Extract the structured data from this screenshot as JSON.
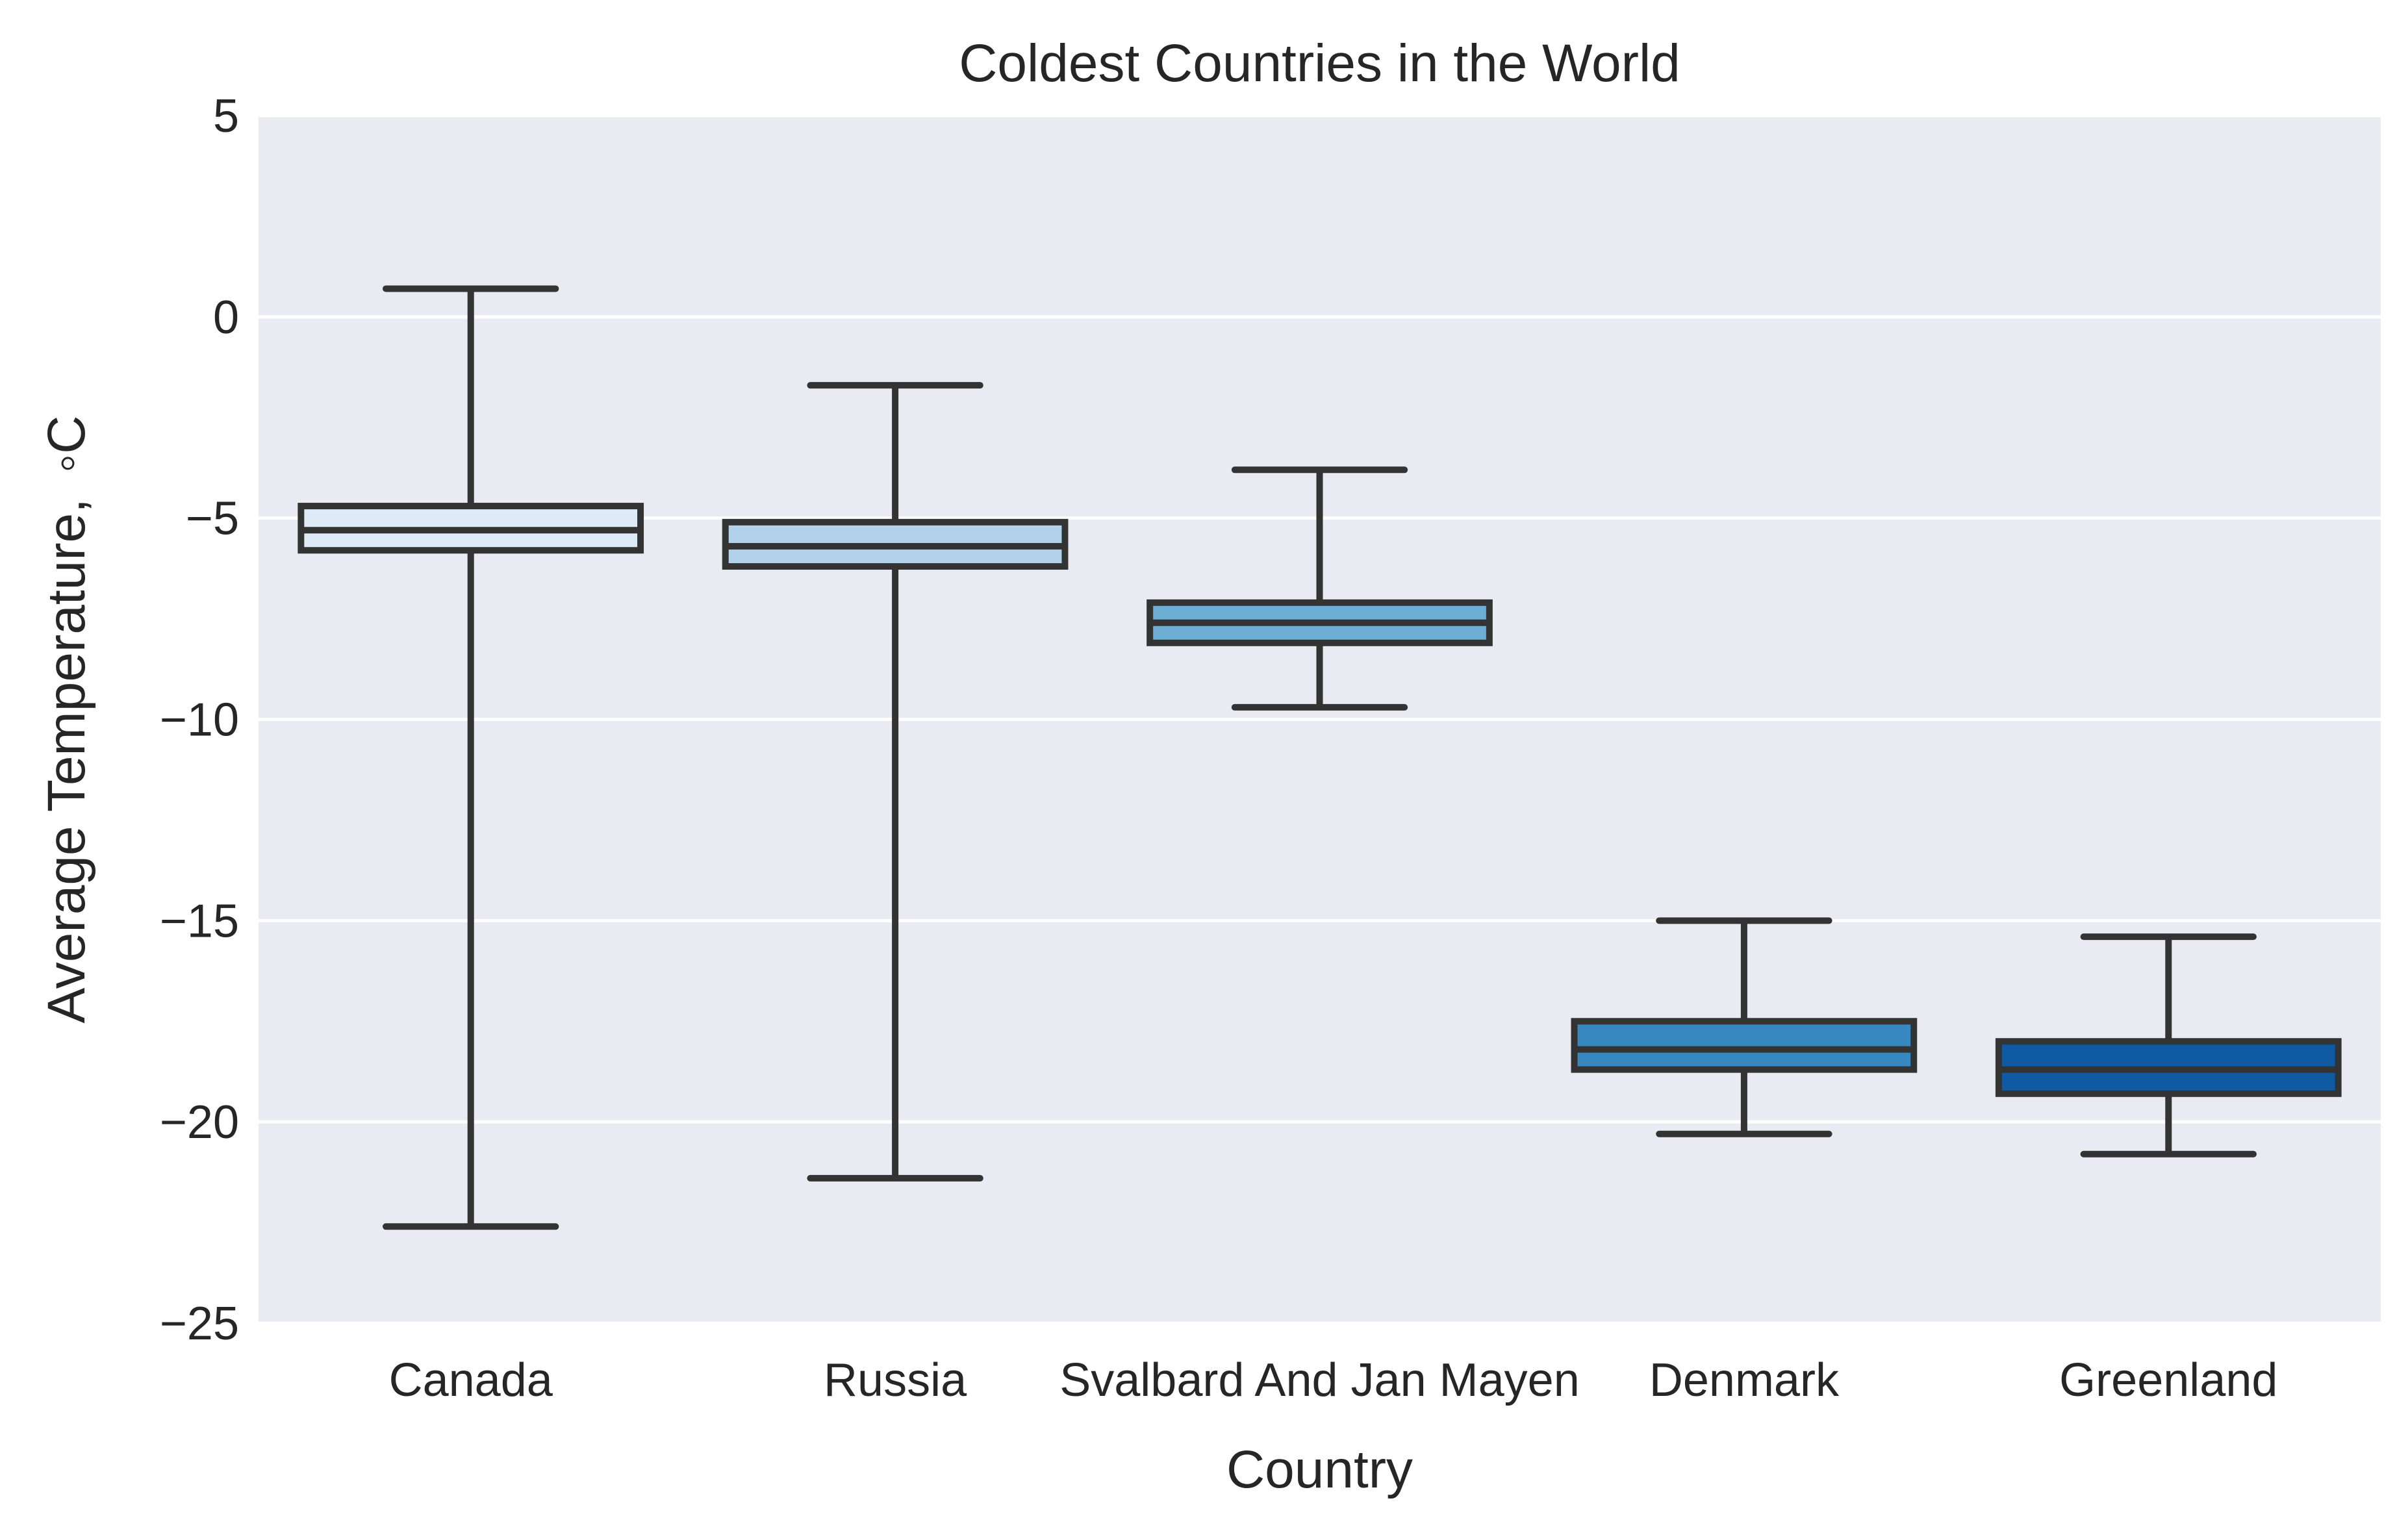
{
  "chart_data": {
    "type": "box",
    "title": "Coldest Countries in the World",
    "xlabel": "Country",
    "ylabel": "Average Temperature,  ◦C",
    "ylim": [
      -25,
      5
    ],
    "yticks": [
      5,
      0,
      -5,
      -10,
      -15,
      -20,
      -25
    ],
    "ytick_labels": [
      "5",
      "0",
      "−5",
      "−10",
      "−15",
      "−20",
      "−25"
    ],
    "grid": true,
    "background_color": "#eaeaf2",
    "grid_color": "#ffffff",
    "line_color": "#333333",
    "categories": [
      "Canada",
      "Russia",
      "Svalbard And Jan Mayen",
      "Denmark",
      "Greenland"
    ],
    "boxes": [
      {
        "category": "Canada",
        "whisker_low": -22.6,
        "q1": -5.8,
        "median": -5.3,
        "q3": -4.7,
        "whisker_high": 0.7,
        "color": "#deebf7"
      },
      {
        "category": "Russia",
        "whisker_low": -21.4,
        "q1": -6.2,
        "median": -5.7,
        "q3": -5.1,
        "whisker_high": -1.7,
        "color": "#b1d2e8"
      },
      {
        "category": "Svalbard And Jan Mayen",
        "whisker_low": -9.7,
        "q1": -8.1,
        "median": -7.6,
        "q3": -7.1,
        "whisker_high": -3.8,
        "color": "#6daed5"
      },
      {
        "category": "Denmark",
        "whisker_low": -20.3,
        "q1": -18.7,
        "median": -18.2,
        "q3": -17.5,
        "whisker_high": -15.0,
        "color": "#3787c0"
      },
      {
        "category": "Greenland",
        "whisker_low": -20.8,
        "q1": -19.3,
        "median": -18.7,
        "q3": -18.0,
        "whisker_high": -15.4,
        "color": "#0f5aa3"
      }
    ]
  }
}
